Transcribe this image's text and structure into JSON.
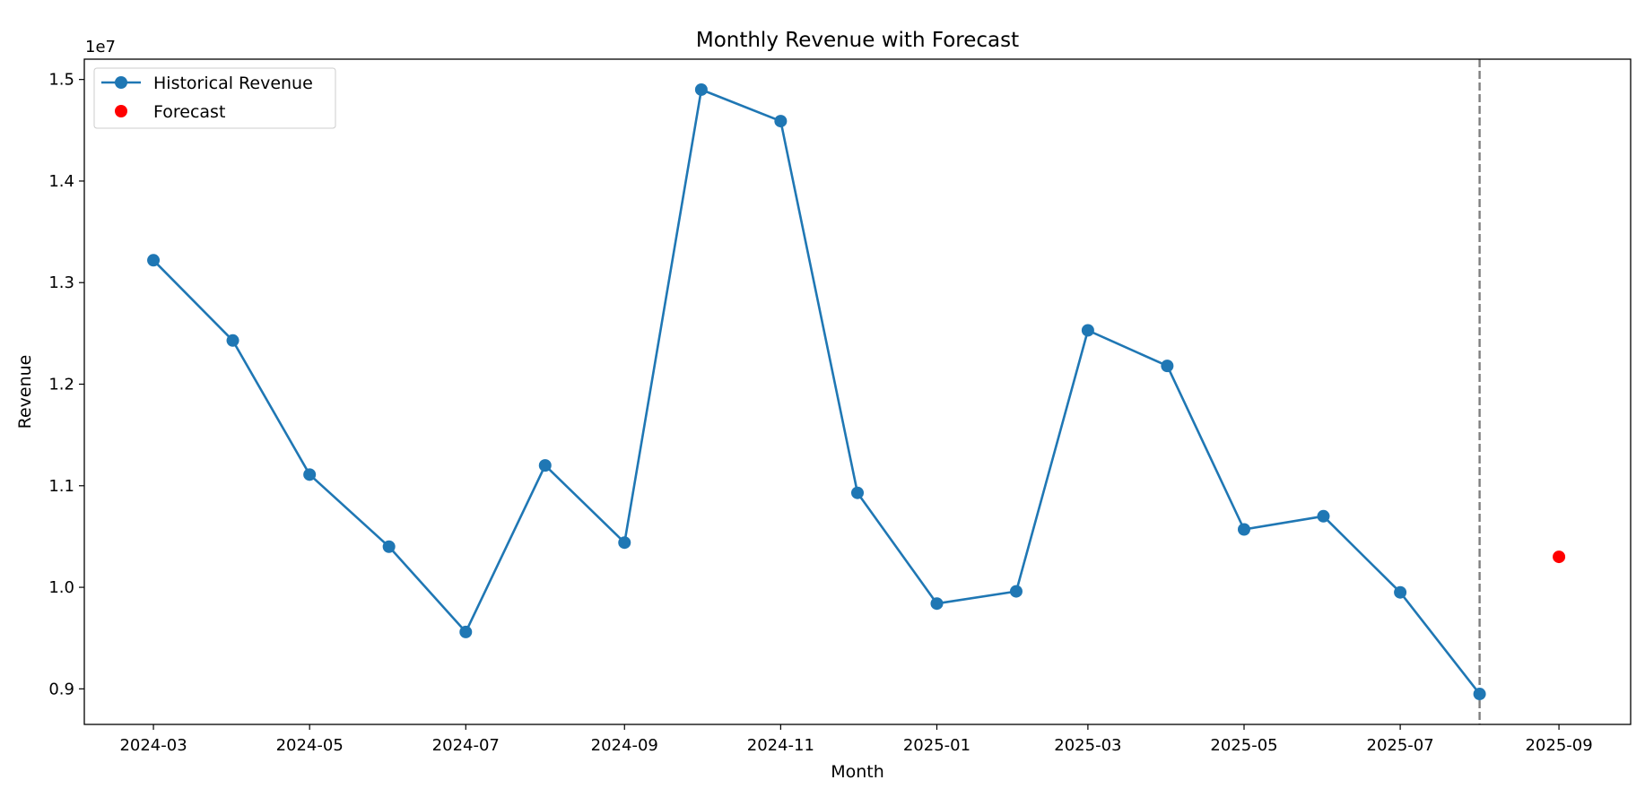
{
  "chart_data": {
    "type": "line",
    "title": "Monthly Revenue with Forecast",
    "xlabel": "Month",
    "ylabel": "Revenue",
    "y_offset_label": "1e7",
    "y_scale_factor": 10000000,
    "grid": false,
    "legend_position": "top-left",
    "x_ticks": [
      "2024-03",
      "2024-05",
      "2024-07",
      "2024-09",
      "2024-11",
      "2025-01",
      "2025-03",
      "2025-05",
      "2025-07",
      "2025-09"
    ],
    "y_ticks": [
      0.9,
      1.0,
      1.1,
      1.2,
      1.3,
      1.4,
      1.5
    ],
    "xlim": [
      "2024-02-03",
      "2025-09-29"
    ],
    "ylim": [
      8650000,
      15200000
    ],
    "vline": {
      "x": "2025-08-01",
      "color": "#7f7f7f",
      "style": "dashed"
    },
    "series": [
      {
        "name": "Historical Revenue",
        "kind": "line-marker",
        "color": "#1f77b4",
        "x": [
          "2024-03-01",
          "2024-04-01",
          "2024-05-01",
          "2024-06-01",
          "2024-07-01",
          "2024-08-01",
          "2024-09-01",
          "2024-10-01",
          "2024-11-01",
          "2024-12-01",
          "2025-01-01",
          "2025-02-01",
          "2025-03-01",
          "2025-04-01",
          "2025-05-01",
          "2025-06-01",
          "2025-07-01",
          "2025-08-01"
        ],
        "values": [
          13220000,
          12430000,
          11110000,
          10400000,
          9560000,
          11200000,
          10440000,
          14900000,
          14590000,
          10930000,
          9840000,
          9960000,
          12530000,
          12180000,
          10570000,
          10700000,
          9950000,
          8950000
        ]
      },
      {
        "name": "Forecast",
        "kind": "marker",
        "color": "#ff0000",
        "x": [
          "2025-09-01"
        ],
        "values": [
          10300000
        ]
      }
    ]
  }
}
